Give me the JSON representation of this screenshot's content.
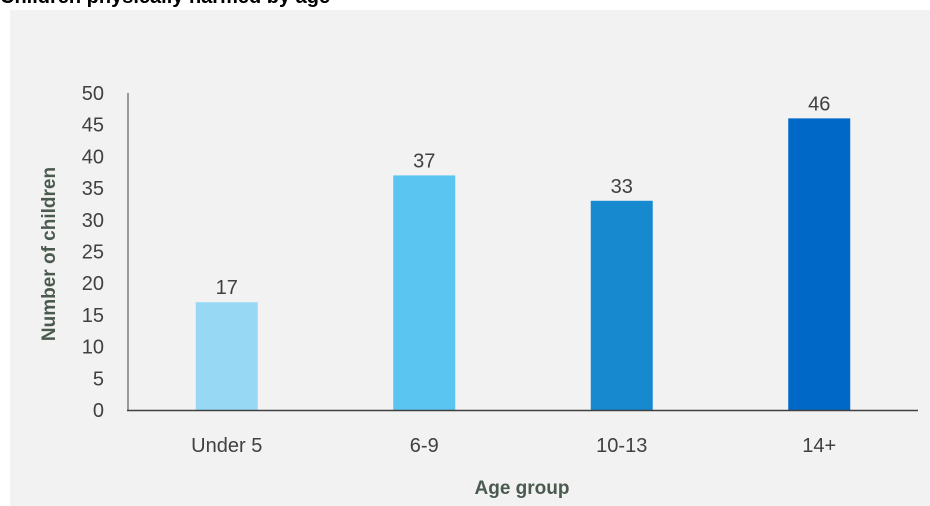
{
  "chart_data": {
    "type": "bar",
    "title": "Children physically harmed by age",
    "xlabel": "Age group",
    "ylabel": "Number of children",
    "categories": [
      "Under 5",
      "6-9",
      "10-13",
      "14+"
    ],
    "values": [
      17,
      37,
      33,
      46
    ],
    "colors": [
      "#97d8f5",
      "#5bc5f1",
      "#1789cf",
      "#0069c8"
    ],
    "ylim": [
      0,
      50
    ],
    "yticks": [
      0,
      5,
      10,
      15,
      20,
      25,
      30,
      35,
      40,
      45,
      50
    ],
    "grid": false,
    "legend": "none"
  }
}
